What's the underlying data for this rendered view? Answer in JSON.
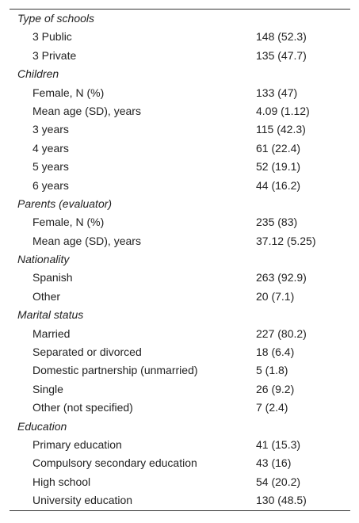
{
  "table": {
    "sections": [
      {
        "title": "Type of schools",
        "rows": [
          [
            "3 Public",
            "148 (52.3)"
          ],
          [
            "3 Private",
            "135 (47.7)"
          ]
        ]
      },
      {
        "title": "Children",
        "rows": [
          [
            "Female, N (%)",
            "133 (47)"
          ],
          [
            "Mean age (SD), years",
            "4.09 (1.12)"
          ],
          [
            "3 years",
            "115 (42.3)"
          ],
          [
            "4 years",
            "61 (22.4)"
          ],
          [
            "5 years",
            "52 (19.1)"
          ],
          [
            "6 years",
            "44 (16.2)"
          ]
        ]
      },
      {
        "title": "Parents (evaluator)",
        "rows": [
          [
            "Female, N (%)",
            "235 (83)"
          ],
          [
            "Mean age (SD), years",
            "37.12 (5.25)"
          ]
        ]
      },
      {
        "title": "Nationality",
        "rows": [
          [
            "Spanish",
            "263 (92.9)"
          ],
          [
            "Other",
            "20 (7.1)"
          ]
        ]
      },
      {
        "title": "Marital status",
        "rows": [
          [
            "Married",
            "227 (80.2)"
          ],
          [
            "Separated or divorced",
            "18 (6.4)"
          ],
          [
            "Domestic partnership (unmarried)",
            "5 (1.8)"
          ],
          [
            "Single",
            "26 (9.2)"
          ],
          [
            "Other (not specified)",
            "7 (2.4)"
          ]
        ]
      },
      {
        "title": "Education",
        "rows": [
          [
            "Primary education",
            "41 (15.3)"
          ],
          [
            "Compulsory secondary education",
            "43 (16)"
          ],
          [
            "High school",
            "54 (20.2)"
          ],
          [
            "University education",
            "130 (48.5)"
          ]
        ]
      }
    ]
  }
}
